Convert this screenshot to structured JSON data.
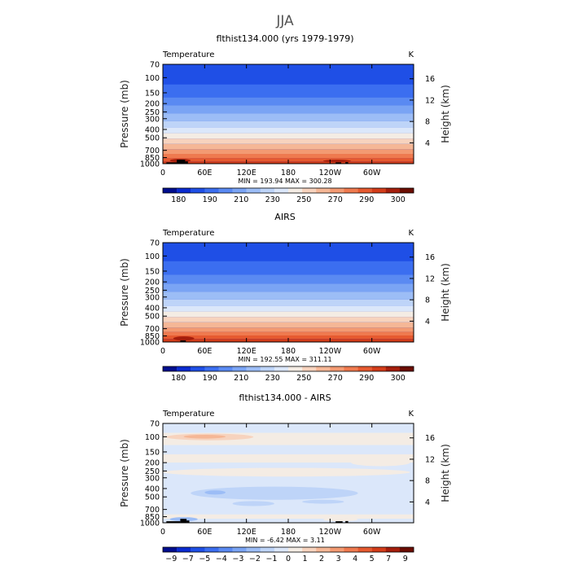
{
  "figure": {
    "title": "JJA"
  },
  "chart_data": [
    {
      "type": "heatmap",
      "title": "flthist134.000 (yrs 1979-1979)",
      "variable": "Temperature",
      "units": "K",
      "ylabel": "Pressure (mb)",
      "ylabel_right": "Height (km)",
      "xticks": [
        "0",
        "60E",
        "120E",
        "180",
        "120W",
        "60W"
      ],
      "yticks_pressure": [
        "70",
        "100",
        "150",
        "200",
        "250",
        "300",
        "400",
        "500",
        "700",
        "850",
        "1000"
      ],
      "yticks_height": [
        "16",
        "12",
        "8",
        "4"
      ],
      "stats": "MIN = 193.94   MAX = 300.28",
      "levels": [
        "180",
        "190",
        "210",
        "230",
        "250",
        "270",
        "290",
        "300"
      ],
      "colorbar_colors": [
        "#000e8e",
        "#0a2bd0",
        "#1f4fe6",
        "#3b6ef0",
        "#5a8af2",
        "#7aa4f4",
        "#9cbdf6",
        "#bed4f8",
        "#dbe7fa",
        "#f4ece4",
        "#f7d3be",
        "#f5b796",
        "#f39a72",
        "#ef7a4f",
        "#e65a30",
        "#d33d1a",
        "#a51e0c",
        "#6b0d02"
      ],
      "background_color": "#1f4fe6",
      "field": [
        {
          "p": 70,
          "color": "#1f4fe6"
        },
        {
          "p": 120,
          "color": "#3b6ef0"
        },
        {
          "p": 170,
          "color": "#5a8af2"
        },
        {
          "p": 210,
          "color": "#7aa4f4"
        },
        {
          "p": 260,
          "color": "#9cbdf6"
        },
        {
          "p": 320,
          "color": "#bed4f8"
        },
        {
          "p": 380,
          "color": "#dbe7fa"
        },
        {
          "p": 440,
          "color": "#f4ece4"
        },
        {
          "p": 510,
          "color": "#f7d3be"
        },
        {
          "p": 590,
          "color": "#f5b796"
        },
        {
          "p": 680,
          "color": "#f39a72"
        },
        {
          "p": 770,
          "color": "#ef7a4f"
        },
        {
          "p": 860,
          "color": "#e65a30"
        },
        {
          "p": 940,
          "color": "#d33d1a"
        }
      ],
      "patches": [
        {
          "lon": [
            10,
            40
          ],
          "p": [
            880,
            960
          ],
          "color": "#a51e0c"
        },
        {
          "lon": [
            230,
            270
          ],
          "p": [
            900,
            960
          ],
          "color": "#a51e0c"
        }
      ],
      "topography": [
        {
          "lon": [
            5,
            20
          ],
          "p": [
            965,
            1000
          ]
        },
        {
          "lon": [
            20,
            32
          ],
          "p": [
            900,
            1000
          ]
        },
        {
          "lon": [
            32,
            36
          ],
          "p": [
            940,
            1000
          ]
        },
        {
          "lon": [
            248,
            256
          ],
          "p": [
            965,
            1000
          ]
        },
        {
          "lon": [
            262,
            266
          ],
          "p": [
            960,
            1000
          ]
        }
      ]
    },
    {
      "type": "heatmap",
      "title": "AIRS",
      "variable": "Temperature",
      "units": "K",
      "ylabel": "Pressure (mb)",
      "ylabel_right": "Height (km)",
      "xticks": [
        "0",
        "60E",
        "120E",
        "180",
        "120W",
        "60W"
      ],
      "yticks_pressure": [
        "70",
        "100",
        "150",
        "200",
        "250",
        "300",
        "400",
        "500",
        "700",
        "850",
        "1000"
      ],
      "yticks_height": [
        "16",
        "12",
        "8",
        "4"
      ],
      "stats": "MIN = 192.55   MAX = 311.11",
      "levels": [
        "180",
        "190",
        "210",
        "230",
        "250",
        "270",
        "290",
        "300"
      ],
      "colorbar_colors": [
        "#000e8e",
        "#0a2bd0",
        "#1f4fe6",
        "#3b6ef0",
        "#5a8af2",
        "#7aa4f4",
        "#9cbdf6",
        "#bed4f8",
        "#dbe7fa",
        "#f4ece4",
        "#f7d3be",
        "#f5b796",
        "#f39a72",
        "#ef7a4f",
        "#e65a30",
        "#d33d1a",
        "#a51e0c",
        "#6b0d02"
      ],
      "background_color": "#1f4fe6",
      "field": [
        {
          "p": 70,
          "color": "#1f4fe6"
        },
        {
          "p": 115,
          "color": "#3b6ef0"
        },
        {
          "p": 165,
          "color": "#5a8af2"
        },
        {
          "p": 210,
          "color": "#7aa4f4"
        },
        {
          "p": 260,
          "color": "#9cbdf6"
        },
        {
          "p": 320,
          "color": "#bed4f8"
        },
        {
          "p": 380,
          "color": "#dbe7fa"
        },
        {
          "p": 440,
          "color": "#f4ece4"
        },
        {
          "p": 510,
          "color": "#f7d3be"
        },
        {
          "p": 590,
          "color": "#f5b796"
        },
        {
          "p": 680,
          "color": "#f39a72"
        },
        {
          "p": 760,
          "color": "#ef7a4f"
        },
        {
          "p": 840,
          "color": "#e65a30"
        },
        {
          "p": 920,
          "color": "#d33d1a"
        }
      ],
      "patches": [
        {
          "lon": [
            15,
            45
          ],
          "p": [
            860,
            960
          ],
          "color": "#a51e0c"
        }
      ],
      "topography": [
        {
          "lon": [
            25,
            33
          ],
          "p": [
            960,
            1000
          ]
        }
      ]
    },
    {
      "type": "heatmap",
      "title": "flthist134.000 - AIRS",
      "variable": "Temperature",
      "units": "K",
      "ylabel": "Pressure (mb)",
      "ylabel_right": "Height (km)",
      "xticks": [
        "0",
        "60E",
        "120E",
        "180",
        "120W",
        "60W"
      ],
      "yticks_pressure": [
        "70",
        "100",
        "150",
        "200",
        "250",
        "300",
        "400",
        "500",
        "700",
        "850",
        "1000"
      ],
      "yticks_height": [
        "16",
        "12",
        "8",
        "4"
      ],
      "stats": "MIN =   -6.42   MAX =    3.11",
      "levels": [
        "−9",
        "−7",
        "−5",
        "−4",
        "−3",
        "−2",
        "−1",
        "0",
        "1",
        "2",
        "3",
        "4",
        "5",
        "7",
        "9"
      ],
      "colorbar_colors": [
        "#000e8e",
        "#0a2bd0",
        "#1f4fe6",
        "#3b6ef0",
        "#5a8af2",
        "#7aa4f4",
        "#9cbdf6",
        "#bed4f8",
        "#dbe7fa",
        "#f4ece4",
        "#f7d3be",
        "#f5b796",
        "#f39a72",
        "#ef7a4f",
        "#e65a30",
        "#d33d1a",
        "#a51e0c",
        "#6b0d02"
      ],
      "background_color": "#dbe7fa",
      "field": [
        {
          "p": 70,
          "color": "#dbe7fa"
        },
        {
          "p": 90,
          "color": "#f4ece4"
        },
        {
          "p": 125,
          "color": "#dbe7fa"
        },
        {
          "p": 160,
          "color": "#f4ece4"
        },
        {
          "p": 200,
          "color": "#dbe7fa"
        },
        {
          "p": 460,
          "color": "#dbe7fa"
        },
        {
          "p": 650,
          "color": "#dbe7fa"
        },
        {
          "p": 800,
          "color": "#f4ece4"
        },
        {
          "p": 900,
          "color": "#dbe7fa"
        }
      ],
      "patches": [
        {
          "lon": [
            5,
            130
          ],
          "p": [
            92,
            110
          ],
          "color": "#f7d3be"
        },
        {
          "lon": [
            30,
            90
          ],
          "p": [
            95,
            105
          ],
          "color": "#f5b796"
        },
        {
          "lon": [
            60,
            140
          ],
          "p": [
            140,
            160
          ],
          "color": "#dbe7fa"
        },
        {
          "lon": [
            270,
            355
          ],
          "p": [
            180,
            220
          ],
          "color": "#f4ece4"
        },
        {
          "lon": [
            0,
            355
          ],
          "p": [
            230,
            290
          ],
          "color": "#f4ece4"
        },
        {
          "lon": [
            40,
            280
          ],
          "p": [
            380,
            540
          ],
          "color": "#bed4f8"
        },
        {
          "lon": [
            60,
            90
          ],
          "p": [
            420,
            470
          ],
          "color": "#9cbdf6"
        },
        {
          "lon": [
            100,
            160
          ],
          "p": [
            560,
            640
          ],
          "color": "#bed4f8"
        },
        {
          "lon": [
            200,
            260
          ],
          "p": [
            540,
            600
          ],
          "color": "#bed4f8"
        },
        {
          "lon": [
            10,
            50
          ],
          "p": [
            860,
            960
          ],
          "color": "#9cbdf6"
        },
        {
          "lon": [
            230,
            280
          ],
          "p": [
            880,
            960
          ],
          "color": "#f4ece4"
        }
      ],
      "topography": [
        {
          "lon": [
            5,
            25
          ],
          "p": [
            960,
            1000
          ]
        },
        {
          "lon": [
            25,
            34
          ],
          "p": [
            900,
            1000
          ]
        },
        {
          "lon": [
            34,
            38
          ],
          "p": [
            940,
            1000
          ]
        },
        {
          "lon": [
            248,
            258
          ],
          "p": [
            960,
            1000
          ]
        },
        {
          "lon": [
            262,
            266
          ],
          "p": [
            955,
            1000
          ]
        }
      ]
    }
  ]
}
